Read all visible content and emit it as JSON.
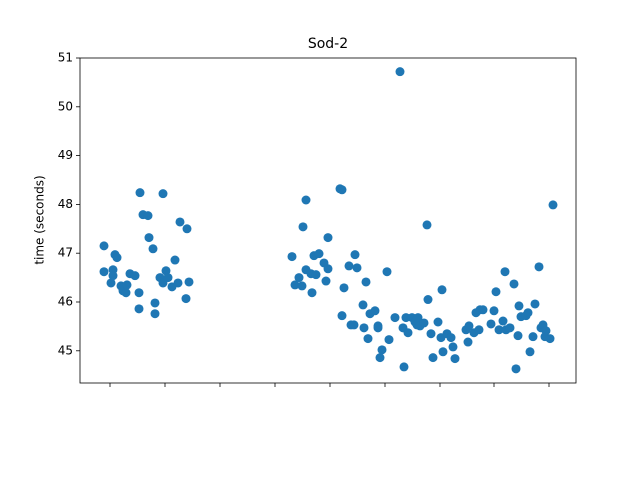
{
  "chart_data": {
    "type": "scatter",
    "title": "Sod-2",
    "ylabel": "time (seconds)",
    "color": "#1f77b4",
    "x": [
      24,
      24,
      31,
      33,
      35,
      37,
      33,
      41,
      43,
      46,
      47,
      50,
      55,
      59,
      60,
      59,
      63,
      68,
      69,
      73,
      75,
      75,
      80,
      83,
      83,
      86,
      88,
      92,
      95,
      98,
      100,
      107,
      109,
      106,
      212,
      215,
      219,
      222,
      223,
      226,
      226,
      231,
      232,
      234,
      236,
      239,
      244,
      246,
      248,
      248,
      260,
      262,
      262,
      264,
      269,
      271,
      274,
      275,
      277,
      283,
      284,
      286,
      288,
      290,
      295,
      298,
      298,
      300,
      302,
      307,
      309,
      315,
      320,
      323,
      324,
      326,
      328,
      332,
      335,
      337,
      338,
      340,
      344,
      347,
      348,
      351,
      353,
      358,
      361,
      362,
      363,
      367,
      371,
      373,
      375,
      386,
      388,
      389,
      394,
      396,
      399,
      400,
      403,
      411,
      414,
      416,
      419,
      423,
      425,
      426,
      430,
      434,
      436,
      438,
      439,
      441,
      446,
      448,
      450,
      453,
      455,
      459,
      461,
      463,
      465,
      466,
      470,
      473
    ],
    "values": [
      47.15,
      46.62,
      46.39,
      46.66,
      46.97,
      46.91,
      46.54,
      46.33,
      46.23,
      46.19,
      46.35,
      46.58,
      46.54,
      45.86,
      48.24,
      46.19,
      47.79,
      47.77,
      47.32,
      47.09,
      45.76,
      45.98,
      46.5,
      48.22,
      46.39,
      46.64,
      46.5,
      46.31,
      46.86,
      46.39,
      47.64,
      47.5,
      46.41,
      46.07,
      46.93,
      46.35,
      46.5,
      46.33,
      47.54,
      48.09,
      46.66,
      46.58,
      46.19,
      46.95,
      46.56,
      46.99,
      46.8,
      46.43,
      47.32,
      46.68,
      48.32,
      48.3,
      45.72,
      46.29,
      46.74,
      45.53,
      45.53,
      46.97,
      46.7,
      45.94,
      45.47,
      46.41,
      45.25,
      45.76,
      45.82,
      45.47,
      45.51,
      44.86,
      45.02,
      46.62,
      45.23,
      45.68,
      50.72,
      45.47,
      44.67,
      45.68,
      45.37,
      45.68,
      45.59,
      45.53,
      45.68,
      45.51,
      45.57,
      47.58,
      46.05,
      45.35,
      44.86,
      45.59,
      45.27,
      46.25,
      44.98,
      45.35,
      45.27,
      45.08,
      44.84,
      45.43,
      45.18,
      45.51,
      45.37,
      45.78,
      45.43,
      45.84,
      45.84,
      45.55,
      45.82,
      46.21,
      45.43,
      45.61,
      46.62,
      45.43,
      45.47,
      46.37,
      44.63,
      45.31,
      45.92,
      45.7,
      45.72,
      45.78,
      44.98,
      45.29,
      45.96,
      46.72,
      45.47,
      45.53,
      45.29,
      45.41,
      45.25,
      47.99
    ],
    "xlim": [
      0,
      496
    ],
    "xticks": [
      30,
      85,
      140,
      195,
      250,
      305,
      360,
      414,
      469
    ],
    "ylim": [
      44.34,
      51
    ],
    "yticks": [
      45,
      46,
      47,
      48,
      49,
      50,
      51
    ]
  }
}
